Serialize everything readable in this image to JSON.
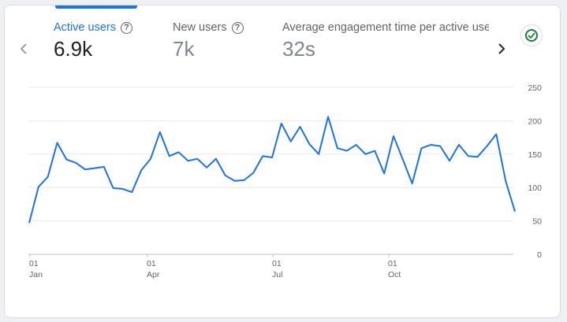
{
  "metrics": [
    {
      "label": "Active users",
      "value": "6.9k",
      "active": true
    },
    {
      "label": "New users",
      "value": "7k",
      "active": false
    },
    {
      "label": "Average engagement time per active user",
      "value": "32s",
      "active": false
    }
  ],
  "icons": {
    "prev": "chevron-left-icon",
    "next": "chevron-right-icon",
    "help": "help-circle-icon",
    "status": "check-circle-icon"
  },
  "colors": {
    "accent": "#1a73e8",
    "line": "#1a73e8",
    "status": "#188038"
  },
  "chart_data": {
    "type": "line",
    "series": [
      {
        "values": [
          47,
          101,
          116,
          167,
          142,
          137,
          127,
          129,
          131,
          99,
          98,
          93,
          126,
          143,
          183,
          147,
          153,
          140,
          143,
          130,
          143,
          118,
          110,
          111,
          122,
          147,
          145,
          196,
          169,
          191,
          165,
          150,
          206,
          159,
          155,
          164,
          150,
          155,
          121,
          177,
          142,
          106,
          159,
          164,
          162,
          140,
          164,
          147,
          146,
          162,
          180,
          110,
          64
        ]
      }
    ],
    "x_ticks": [
      {
        "day": "01",
        "month": "Jan"
      },
      {
        "day": "01",
        "month": "Apr"
      },
      {
        "day": "01",
        "month": "Jul"
      },
      {
        "day": "01",
        "month": "Oct"
      }
    ],
    "y_ticks": [
      "250",
      "200",
      "150",
      "100",
      "50",
      "0"
    ],
    "ylim": [
      0,
      250
    ],
    "grid": true
  }
}
